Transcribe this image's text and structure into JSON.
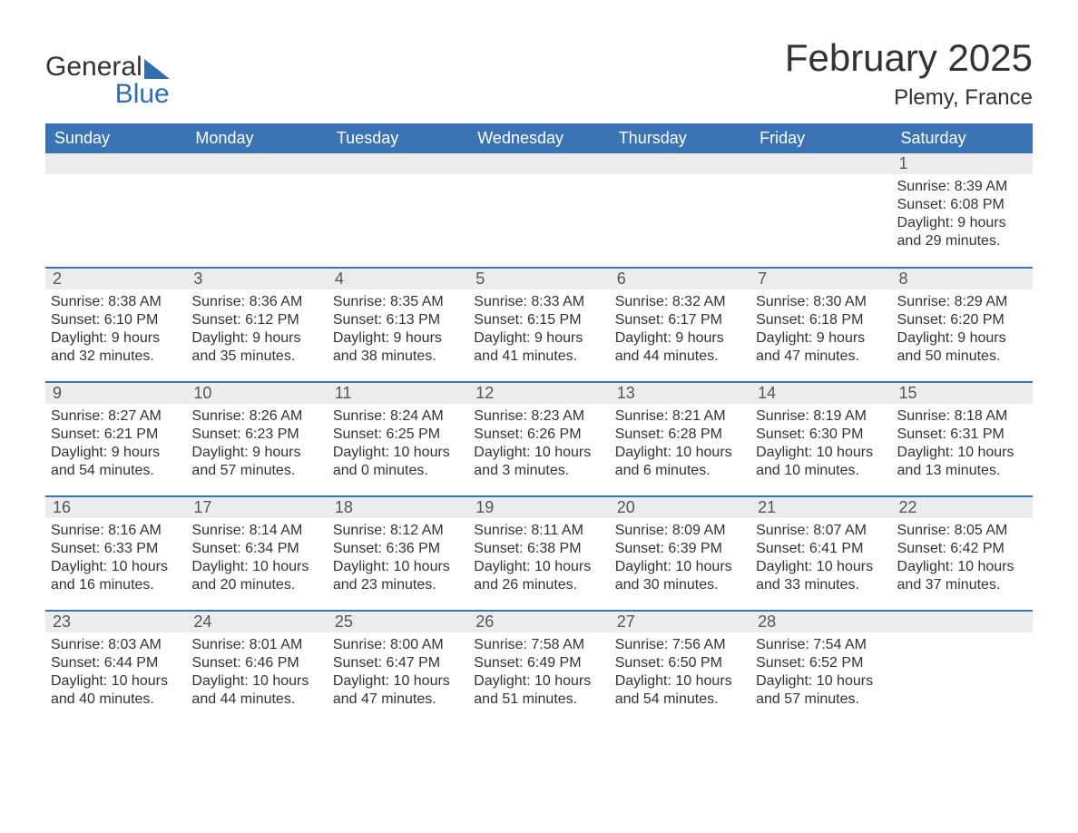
{
  "logo": {
    "general": "General",
    "blue": "Blue",
    "accent": "#2f6fb0"
  },
  "title": "February 2025",
  "location": "Plemy, France",
  "colors": {
    "header_bg": "#3a74b4",
    "header_text": "#ffffff",
    "daynum_bg": "#ececec",
    "row_divider": "#3a74b4",
    "text": "#333333",
    "background": "#ffffff"
  },
  "fonts": {
    "title_size": 42,
    "location_size": 24,
    "header_size": 18,
    "body_size": 16
  },
  "day_headers": [
    "Sunday",
    "Monday",
    "Tuesday",
    "Wednesday",
    "Thursday",
    "Friday",
    "Saturday"
  ],
  "weeks": [
    [
      null,
      null,
      null,
      null,
      null,
      null,
      {
        "num": "1",
        "sunrise": "Sunrise: 8:39 AM",
        "sunset": "Sunset: 6:08 PM",
        "daylight1": "Daylight: 9 hours",
        "daylight2": "and 29 minutes."
      }
    ],
    [
      {
        "num": "2",
        "sunrise": "Sunrise: 8:38 AM",
        "sunset": "Sunset: 6:10 PM",
        "daylight1": "Daylight: 9 hours",
        "daylight2": "and 32 minutes."
      },
      {
        "num": "3",
        "sunrise": "Sunrise: 8:36 AM",
        "sunset": "Sunset: 6:12 PM",
        "daylight1": "Daylight: 9 hours",
        "daylight2": "and 35 minutes."
      },
      {
        "num": "4",
        "sunrise": "Sunrise: 8:35 AM",
        "sunset": "Sunset: 6:13 PM",
        "daylight1": "Daylight: 9 hours",
        "daylight2": "and 38 minutes."
      },
      {
        "num": "5",
        "sunrise": "Sunrise: 8:33 AM",
        "sunset": "Sunset: 6:15 PM",
        "daylight1": "Daylight: 9 hours",
        "daylight2": "and 41 minutes."
      },
      {
        "num": "6",
        "sunrise": "Sunrise: 8:32 AM",
        "sunset": "Sunset: 6:17 PM",
        "daylight1": "Daylight: 9 hours",
        "daylight2": "and 44 minutes."
      },
      {
        "num": "7",
        "sunrise": "Sunrise: 8:30 AM",
        "sunset": "Sunset: 6:18 PM",
        "daylight1": "Daylight: 9 hours",
        "daylight2": "and 47 minutes."
      },
      {
        "num": "8",
        "sunrise": "Sunrise: 8:29 AM",
        "sunset": "Sunset: 6:20 PM",
        "daylight1": "Daylight: 9 hours",
        "daylight2": "and 50 minutes."
      }
    ],
    [
      {
        "num": "9",
        "sunrise": "Sunrise: 8:27 AM",
        "sunset": "Sunset: 6:21 PM",
        "daylight1": "Daylight: 9 hours",
        "daylight2": "and 54 minutes."
      },
      {
        "num": "10",
        "sunrise": "Sunrise: 8:26 AM",
        "sunset": "Sunset: 6:23 PM",
        "daylight1": "Daylight: 9 hours",
        "daylight2": "and 57 minutes."
      },
      {
        "num": "11",
        "sunrise": "Sunrise: 8:24 AM",
        "sunset": "Sunset: 6:25 PM",
        "daylight1": "Daylight: 10 hours",
        "daylight2": "and 0 minutes."
      },
      {
        "num": "12",
        "sunrise": "Sunrise: 8:23 AM",
        "sunset": "Sunset: 6:26 PM",
        "daylight1": "Daylight: 10 hours",
        "daylight2": "and 3 minutes."
      },
      {
        "num": "13",
        "sunrise": "Sunrise: 8:21 AM",
        "sunset": "Sunset: 6:28 PM",
        "daylight1": "Daylight: 10 hours",
        "daylight2": "and 6 minutes."
      },
      {
        "num": "14",
        "sunrise": "Sunrise: 8:19 AM",
        "sunset": "Sunset: 6:30 PM",
        "daylight1": "Daylight: 10 hours",
        "daylight2": "and 10 minutes."
      },
      {
        "num": "15",
        "sunrise": "Sunrise: 8:18 AM",
        "sunset": "Sunset: 6:31 PM",
        "daylight1": "Daylight: 10 hours",
        "daylight2": "and 13 minutes."
      }
    ],
    [
      {
        "num": "16",
        "sunrise": "Sunrise: 8:16 AM",
        "sunset": "Sunset: 6:33 PM",
        "daylight1": "Daylight: 10 hours",
        "daylight2": "and 16 minutes."
      },
      {
        "num": "17",
        "sunrise": "Sunrise: 8:14 AM",
        "sunset": "Sunset: 6:34 PM",
        "daylight1": "Daylight: 10 hours",
        "daylight2": "and 20 minutes."
      },
      {
        "num": "18",
        "sunrise": "Sunrise: 8:12 AM",
        "sunset": "Sunset: 6:36 PM",
        "daylight1": "Daylight: 10 hours",
        "daylight2": "and 23 minutes."
      },
      {
        "num": "19",
        "sunrise": "Sunrise: 8:11 AM",
        "sunset": "Sunset: 6:38 PM",
        "daylight1": "Daylight: 10 hours",
        "daylight2": "and 26 minutes."
      },
      {
        "num": "20",
        "sunrise": "Sunrise: 8:09 AM",
        "sunset": "Sunset: 6:39 PM",
        "daylight1": "Daylight: 10 hours",
        "daylight2": "and 30 minutes."
      },
      {
        "num": "21",
        "sunrise": "Sunrise: 8:07 AM",
        "sunset": "Sunset: 6:41 PM",
        "daylight1": "Daylight: 10 hours",
        "daylight2": "and 33 minutes."
      },
      {
        "num": "22",
        "sunrise": "Sunrise: 8:05 AM",
        "sunset": "Sunset: 6:42 PM",
        "daylight1": "Daylight: 10 hours",
        "daylight2": "and 37 minutes."
      }
    ],
    [
      {
        "num": "23",
        "sunrise": "Sunrise: 8:03 AM",
        "sunset": "Sunset: 6:44 PM",
        "daylight1": "Daylight: 10 hours",
        "daylight2": "and 40 minutes."
      },
      {
        "num": "24",
        "sunrise": "Sunrise: 8:01 AM",
        "sunset": "Sunset: 6:46 PM",
        "daylight1": "Daylight: 10 hours",
        "daylight2": "and 44 minutes."
      },
      {
        "num": "25",
        "sunrise": "Sunrise: 8:00 AM",
        "sunset": "Sunset: 6:47 PM",
        "daylight1": "Daylight: 10 hours",
        "daylight2": "and 47 minutes."
      },
      {
        "num": "26",
        "sunrise": "Sunrise: 7:58 AM",
        "sunset": "Sunset: 6:49 PM",
        "daylight1": "Daylight: 10 hours",
        "daylight2": "and 51 minutes."
      },
      {
        "num": "27",
        "sunrise": "Sunrise: 7:56 AM",
        "sunset": "Sunset: 6:50 PM",
        "daylight1": "Daylight: 10 hours",
        "daylight2": "and 54 minutes."
      },
      {
        "num": "28",
        "sunrise": "Sunrise: 7:54 AM",
        "sunset": "Sunset: 6:52 PM",
        "daylight1": "Daylight: 10 hours",
        "daylight2": "and 57 minutes."
      },
      null
    ]
  ]
}
